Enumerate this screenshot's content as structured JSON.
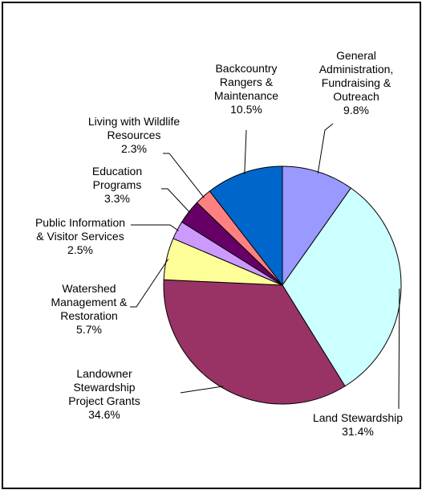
{
  "chart_data": {
    "type": "pie",
    "title": "",
    "start_angle_deg": 0,
    "direction": "clockwise",
    "legend": "none",
    "slices": [
      {
        "label": [
          "General",
          "Administration,",
          "Fundraising &",
          "Outreach"
        ],
        "percent_label": "9.8%",
        "value": 9.8,
        "color": "#9999FF"
      },
      {
        "label": [
          "Land Stewardship"
        ],
        "percent_label": "31.4%",
        "value": 31.4,
        "color": "#CCFFFF"
      },
      {
        "label": [
          "Landowner",
          "Stewardship",
          "Project Grants"
        ],
        "percent_label": "34.6%",
        "value": 34.6,
        "color": "#993366"
      },
      {
        "label": [
          "Watershed",
          "Management &",
          "Restoration"
        ],
        "percent_label": "5.7%",
        "value": 5.7,
        "color": "#FFFF99"
      },
      {
        "label": [
          "Public Information",
          "& Visitor Services"
        ],
        "percent_label": "2.5%",
        "value": 2.5,
        "color": "#CC99FF"
      },
      {
        "label": [
          "Education",
          "Programs"
        ],
        "percent_label": "3.3%",
        "value": 3.3,
        "color": "#660066"
      },
      {
        "label": [
          "Living with Wildlife",
          "Resources"
        ],
        "percent_label": "2.3%",
        "value": 2.3,
        "color": "#FF8080"
      },
      {
        "label": [
          "Backcountry",
          "Rangers &",
          "Maintenance"
        ],
        "percent_label": "10.5%",
        "value": 10.5,
        "color": "#0066CC"
      }
    ]
  }
}
